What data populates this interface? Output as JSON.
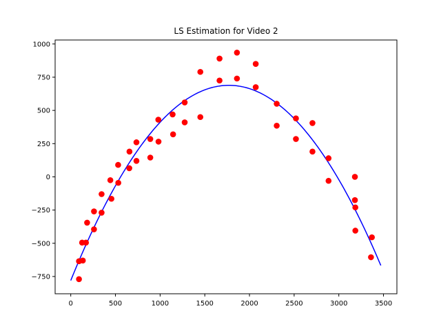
{
  "chart_data": {
    "type": "scatter",
    "title": "LS Estimation for Video 2",
    "xlabel": "",
    "ylabel": "",
    "xlim": [
      -175,
      3650
    ],
    "ylim": [
      -880,
      1030
    ],
    "xticks": [
      0,
      500,
      1000,
      1500,
      2000,
      2500,
      3000,
      3500
    ],
    "yticks": [
      -750,
      -500,
      -250,
      0,
      250,
      500,
      750,
      1000
    ],
    "grid": false,
    "series": [
      {
        "kind": "scatter",
        "color": "#ff0000",
        "points": [
          [
            92,
            -635
          ],
          [
            92,
            -770
          ],
          [
            127,
            -495
          ],
          [
            135,
            -630
          ],
          [
            170,
            -495
          ],
          [
            183,
            -345
          ],
          [
            260,
            -395
          ],
          [
            260,
            -260
          ],
          [
            345,
            -130
          ],
          [
            345,
            -270
          ],
          [
            443,
            -25
          ],
          [
            455,
            -165
          ],
          [
            530,
            90
          ],
          [
            532,
            -45
          ],
          [
            655,
            65
          ],
          [
            657,
            190
          ],
          [
            735,
            260
          ],
          [
            735,
            120
          ],
          [
            890,
            285
          ],
          [
            890,
            145
          ],
          [
            980,
            430
          ],
          [
            982,
            265
          ],
          [
            1140,
            470
          ],
          [
            1145,
            320
          ],
          [
            1275,
            560
          ],
          [
            1275,
            410
          ],
          [
            1450,
            790
          ],
          [
            1450,
            450
          ],
          [
            1665,
            890
          ],
          [
            1665,
            725
          ],
          [
            1860,
            935
          ],
          [
            1860,
            740
          ],
          [
            2070,
            850
          ],
          [
            2070,
            675
          ],
          [
            2305,
            550
          ],
          [
            2305,
            385
          ],
          [
            2520,
            440
          ],
          [
            2520,
            285
          ],
          [
            2705,
            405
          ],
          [
            2705,
            190
          ],
          [
            2885,
            140
          ],
          [
            2885,
            -30
          ],
          [
            3180,
            0
          ],
          [
            3180,
            -175
          ],
          [
            3185,
            -230
          ],
          [
            3185,
            -405
          ],
          [
            3360,
            -605
          ],
          [
            3370,
            -455
          ]
        ]
      },
      {
        "kind": "line",
        "color": "#0000ff",
        "fit": {
          "a": -0.000469,
          "b": 1.66,
          "c": -780
        },
        "x_range": [
          0,
          3470
        ]
      }
    ]
  }
}
